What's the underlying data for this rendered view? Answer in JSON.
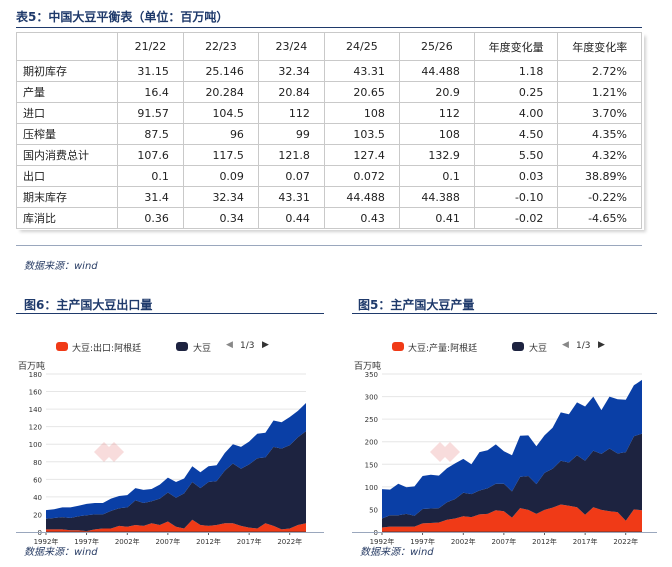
{
  "table": {
    "title": "表5：中国大豆平衡表（单位：百万吨）",
    "columns": [
      "21/22",
      "22/23",
      "23/24",
      "24/25",
      "25/26",
      "年度变化量",
      "年度变化率"
    ],
    "rows": [
      {
        "label": "期初库存",
        "values": [
          "31.15",
          "25.146",
          "32.34",
          "43.31",
          "44.488",
          "1.18",
          "2.72%"
        ]
      },
      {
        "label": "产量",
        "values": [
          "16.4",
          "20.284",
          "20.84",
          "20.65",
          "20.9",
          "0.25",
          "1.21%"
        ]
      },
      {
        "label": "进口",
        "values": [
          "91.57",
          "104.5",
          "112",
          "108",
          "112",
          "4.00",
          "3.70%"
        ]
      },
      {
        "label": "压榨量",
        "values": [
          "87.5",
          "96",
          "99",
          "103.5",
          "108",
          "4.50",
          "4.35%"
        ]
      },
      {
        "label": "国内消费总计",
        "values": [
          "107.6",
          "117.5",
          "121.8",
          "127.4",
          "132.9",
          "5.50",
          "4.32%"
        ]
      },
      {
        "label": "出口",
        "values": [
          "0.1",
          "0.09",
          "0.07",
          "0.072",
          "0.1",
          "0.03",
          "38.89%"
        ]
      },
      {
        "label": "期末库存",
        "values": [
          "31.4",
          "32.34",
          "43.31",
          "44.488",
          "44.388",
          "-0.10",
          "-0.22%"
        ]
      },
      {
        "label": "库消比",
        "values": [
          "0.36",
          "0.34",
          "0.44",
          "0.43",
          "0.41",
          "-0.02",
          "-4.65%"
        ]
      }
    ],
    "source": "数据来源：wind"
  },
  "colors": {
    "red": "#f03a17",
    "navy": "#1d2340",
    "blue": "#0a3fa6",
    "accent": "#1f3a6b"
  },
  "charts": [
    {
      "title": "图6：主产国大豆出口量",
      "legend_a": "大豆:出口:阿根廷",
      "legend_b": "大豆",
      "pager": "1/3",
      "unit": "百万吨",
      "source": "数据来源：wind",
      "chart_data": {
        "type": "area",
        "stacked": true,
        "x": [
          1992,
          1993,
          1994,
          1995,
          1996,
          1997,
          1998,
          1999,
          2000,
          2001,
          2002,
          2003,
          2004,
          2005,
          2006,
          2007,
          2008,
          2009,
          2010,
          2011,
          2012,
          2013,
          2014,
          2015,
          2016,
          2017,
          2018,
          2019,
          2020,
          2021,
          2022,
          2023,
          2024
        ],
        "xticks": [
          "1992年",
          "1997年",
          "2002年",
          "2007年",
          "2012年",
          "2017年",
          "2022年"
        ],
        "yticks": [
          0,
          20,
          40,
          60,
          80,
          100,
          120,
          140,
          160,
          180
        ],
        "ylim": [
          0,
          180
        ],
        "series": [
          {
            "name": "大豆:出口:阿根廷",
            "color": "#f03a17",
            "values": [
              3,
              3,
              3,
              2,
              2,
              1,
              3,
              4,
              4,
              7,
              6,
              8,
              7,
              10,
              8,
              12,
              6,
              4,
              14,
              8,
              7,
              8,
              10,
              10,
              7,
              5,
              4,
              10,
              7,
              3,
              4,
              8,
              10
            ]
          },
          {
            "name": "",
            "color": "#1d2340",
            "values": [
              12,
              13,
              14,
              14,
              16,
              18,
              17,
              16,
              20,
              20,
              22,
              28,
              26,
              25,
              30,
              33,
              33,
              40,
              43,
              42,
              50,
              50,
              60,
              68,
              65,
              72,
              80,
              75,
              90,
              92,
              95,
              100,
              105
            ]
          },
          {
            "name": "",
            "color": "#0a3fa6",
            "values": [
              10,
              10,
              11,
              12,
              12,
              13,
              13,
              13,
              14,
              14,
              14,
              14,
              15,
              14,
              16,
              17,
              18,
              17,
              18,
              18,
              18,
              18,
              20,
              22,
              25,
              26,
              28,
              28,
              30,
              30,
              32,
              30,
              32
            ]
          }
        ]
      }
    },
    {
      "title": "图5：主产国大豆产量",
      "legend_a": "大豆:产量:阿根廷",
      "legend_b": "大豆",
      "pager": "1/3",
      "unit": "百万吨",
      "source": "数据来源：wind",
      "chart_data": {
        "type": "area",
        "stacked": true,
        "x": [
          1992,
          1993,
          1994,
          1995,
          1996,
          1997,
          1998,
          1999,
          2000,
          2001,
          2002,
          2003,
          2004,
          2005,
          2006,
          2007,
          2008,
          2009,
          2010,
          2011,
          2012,
          2013,
          2014,
          2015,
          2016,
          2017,
          2018,
          2019,
          2020,
          2021,
          2022,
          2023,
          2024
        ],
        "xticks": [
          "1992年",
          "1997年",
          "2002年",
          "2007年",
          "2012年",
          "2017年",
          "2022年"
        ],
        "yticks": [
          0,
          50,
          100,
          150,
          200,
          250,
          300,
          350
        ],
        "ylim": [
          0,
          350
        ],
        "series": [
          {
            "name": "大豆:产量:阿根廷",
            "color": "#f03a17",
            "values": [
              10,
              12,
              12,
              12,
              12,
              19,
              20,
              21,
              27,
              30,
              35,
              33,
              39,
              40,
              48,
              46,
              32,
              53,
              49,
              40,
              49,
              54,
              61,
              58,
              55,
              38,
              55,
              49,
              46,
              44,
              25,
              50,
              48
            ]
          },
          {
            "name": "",
            "color": "#1d2340",
            "values": [
              20,
              25,
              25,
              28,
              24,
              32,
              32,
              32,
              39,
              43,
              52,
              51,
              53,
              57,
              59,
              61,
              58,
              69,
              75,
              66,
              82,
              86,
              97,
              96,
              115,
              120,
              125,
              124,
              139,
              130,
              152,
              162,
              170
            ]
          },
          {
            "name": "",
            "color": "#0a3fa6",
            "values": [
              65,
              57,
              70,
              59,
              65,
              73,
              75,
              72,
              75,
              79,
              75,
              66,
              85,
              84,
              87,
              72,
              80,
              91,
              90,
              84,
              83,
              91,
              107,
              107,
              117,
              120,
              120,
              97,
              115,
              120,
              116,
              113,
              119
            ]
          }
        ]
      }
    }
  ]
}
